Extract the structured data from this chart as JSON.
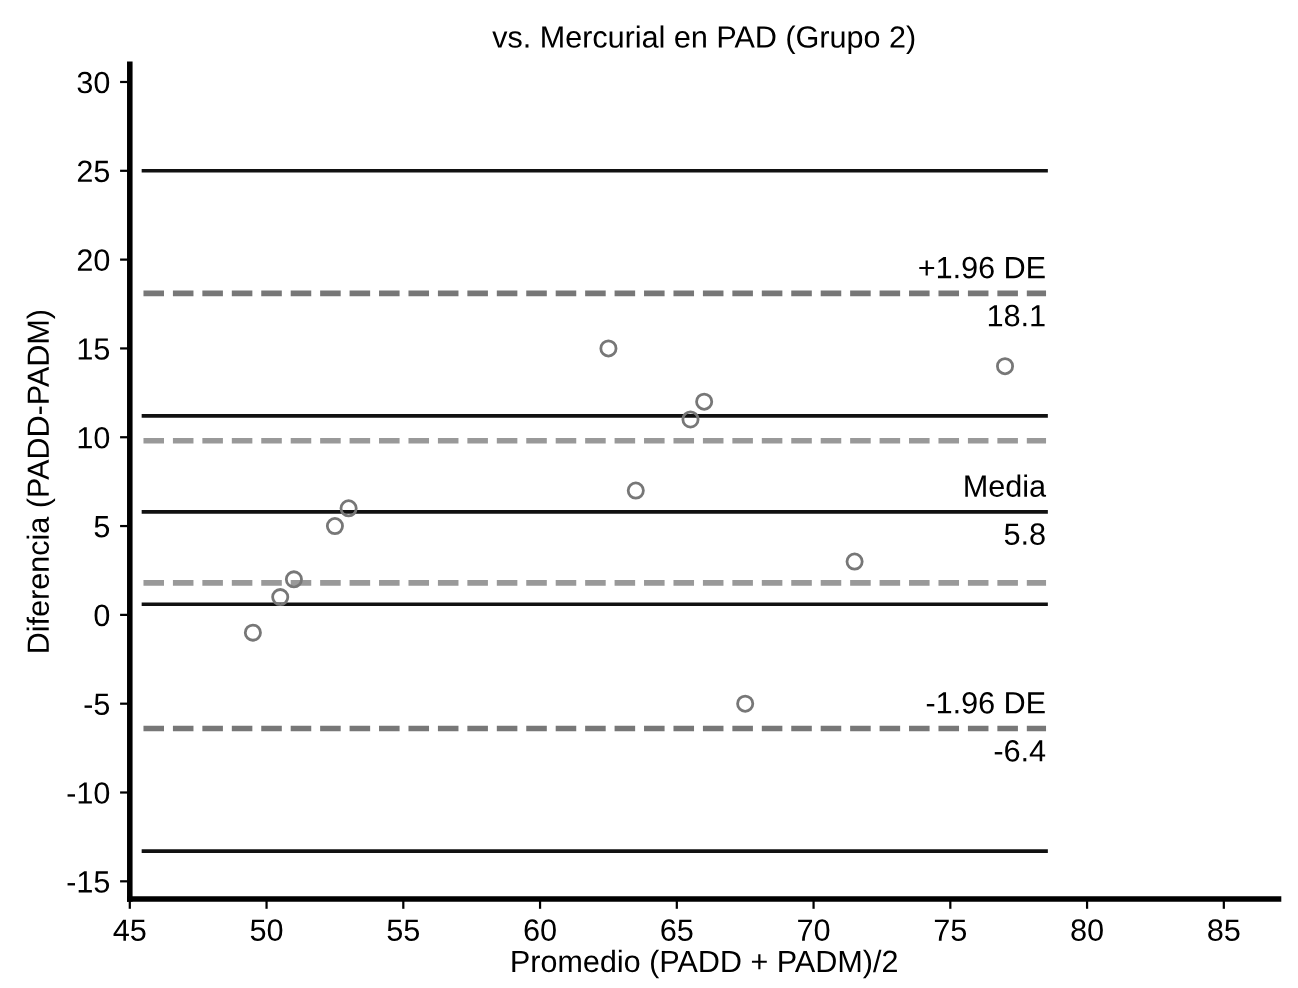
{
  "chart_data": {
    "type": "scatter",
    "title": "vs. Mercurial en PAD (Grupo 2)",
    "xlabel": "Promedio (PADD + PADM)/2",
    "ylabel": "Diferencia (PADD-PADM)",
    "xlim": [
      45,
      87
    ],
    "ylim": [
      -16,
      31
    ],
    "xticks": [
      45,
      50,
      55,
      60,
      65,
      70,
      75,
      80,
      85
    ],
    "yticks": [
      -15,
      -10,
      -5,
      0,
      5,
      10,
      15,
      20,
      25,
      30
    ],
    "grid": false,
    "legend": false,
    "series": [
      {
        "type": "scatter",
        "color": "#777777",
        "marker": "circle",
        "x": [
          49.5,
          50.5,
          51,
          52.5,
          53,
          62.5,
          63.5,
          65.5,
          66,
          67.5,
          71.5,
          77
        ],
        "values": [
          -1,
          1,
          2,
          5,
          6,
          15,
          7,
          11,
          12,
          -5,
          3,
          14
        ]
      },
      {
        "type": "line",
        "color": "#111111",
        "line_style": "solid",
        "marker": "none",
        "x": [
          45.5,
          78.5
        ],
        "values": [
          25,
          25
        ]
      },
      {
        "type": "line",
        "color": "#777777",
        "line_style": "dashed",
        "marker": "none",
        "x": [
          45.5,
          78.5
        ],
        "values": [
          18.1,
          18.1
        ]
      },
      {
        "type": "line",
        "color": "#111111",
        "line_style": "solid",
        "marker": "none",
        "x": [
          45.5,
          78.5
        ],
        "values": [
          11.2,
          11.2
        ]
      },
      {
        "type": "line",
        "color": "#999999",
        "line_style": "dashed",
        "marker": "none",
        "x": [
          45.5,
          78.5
        ],
        "values": [
          9.8,
          9.8
        ]
      },
      {
        "type": "line",
        "color": "#111111",
        "line_style": "solid",
        "marker": "none",
        "x": [
          45.5,
          78.5
        ],
        "values": [
          5.8,
          5.8
        ]
      },
      {
        "type": "line",
        "color": "#999999",
        "line_style": "dashed",
        "marker": "none",
        "x": [
          45.5,
          78.5
        ],
        "values": [
          1.8,
          1.8
        ]
      },
      {
        "type": "line",
        "color": "#111111",
        "line_style": "solid",
        "marker": "none",
        "x": [
          45.5,
          78.5
        ],
        "values": [
          0.6,
          0.6
        ]
      },
      {
        "type": "line",
        "color": "#777777",
        "line_style": "dashed",
        "marker": "none",
        "x": [
          45.5,
          78.5
        ],
        "values": [
          -6.4,
          -6.4
        ]
      },
      {
        "type": "line",
        "color": "#111111",
        "line_style": "solid",
        "marker": "none",
        "x": [
          45.5,
          78.5
        ],
        "values": [
          -13.3,
          -13.3
        ]
      }
    ],
    "annotations": [
      {
        "text": "+1.96 DE",
        "y": 18.1
      },
      {
        "text": "18.1",
        "y": 18.1
      },
      {
        "text": "Media",
        "y": 5.8
      },
      {
        "text": "5.8",
        "y": 5.8
      },
      {
        "text": "-1.96 DE",
        "y": -6.4
      },
      {
        "text": "-6.4",
        "y": -6.4
      }
    ]
  }
}
